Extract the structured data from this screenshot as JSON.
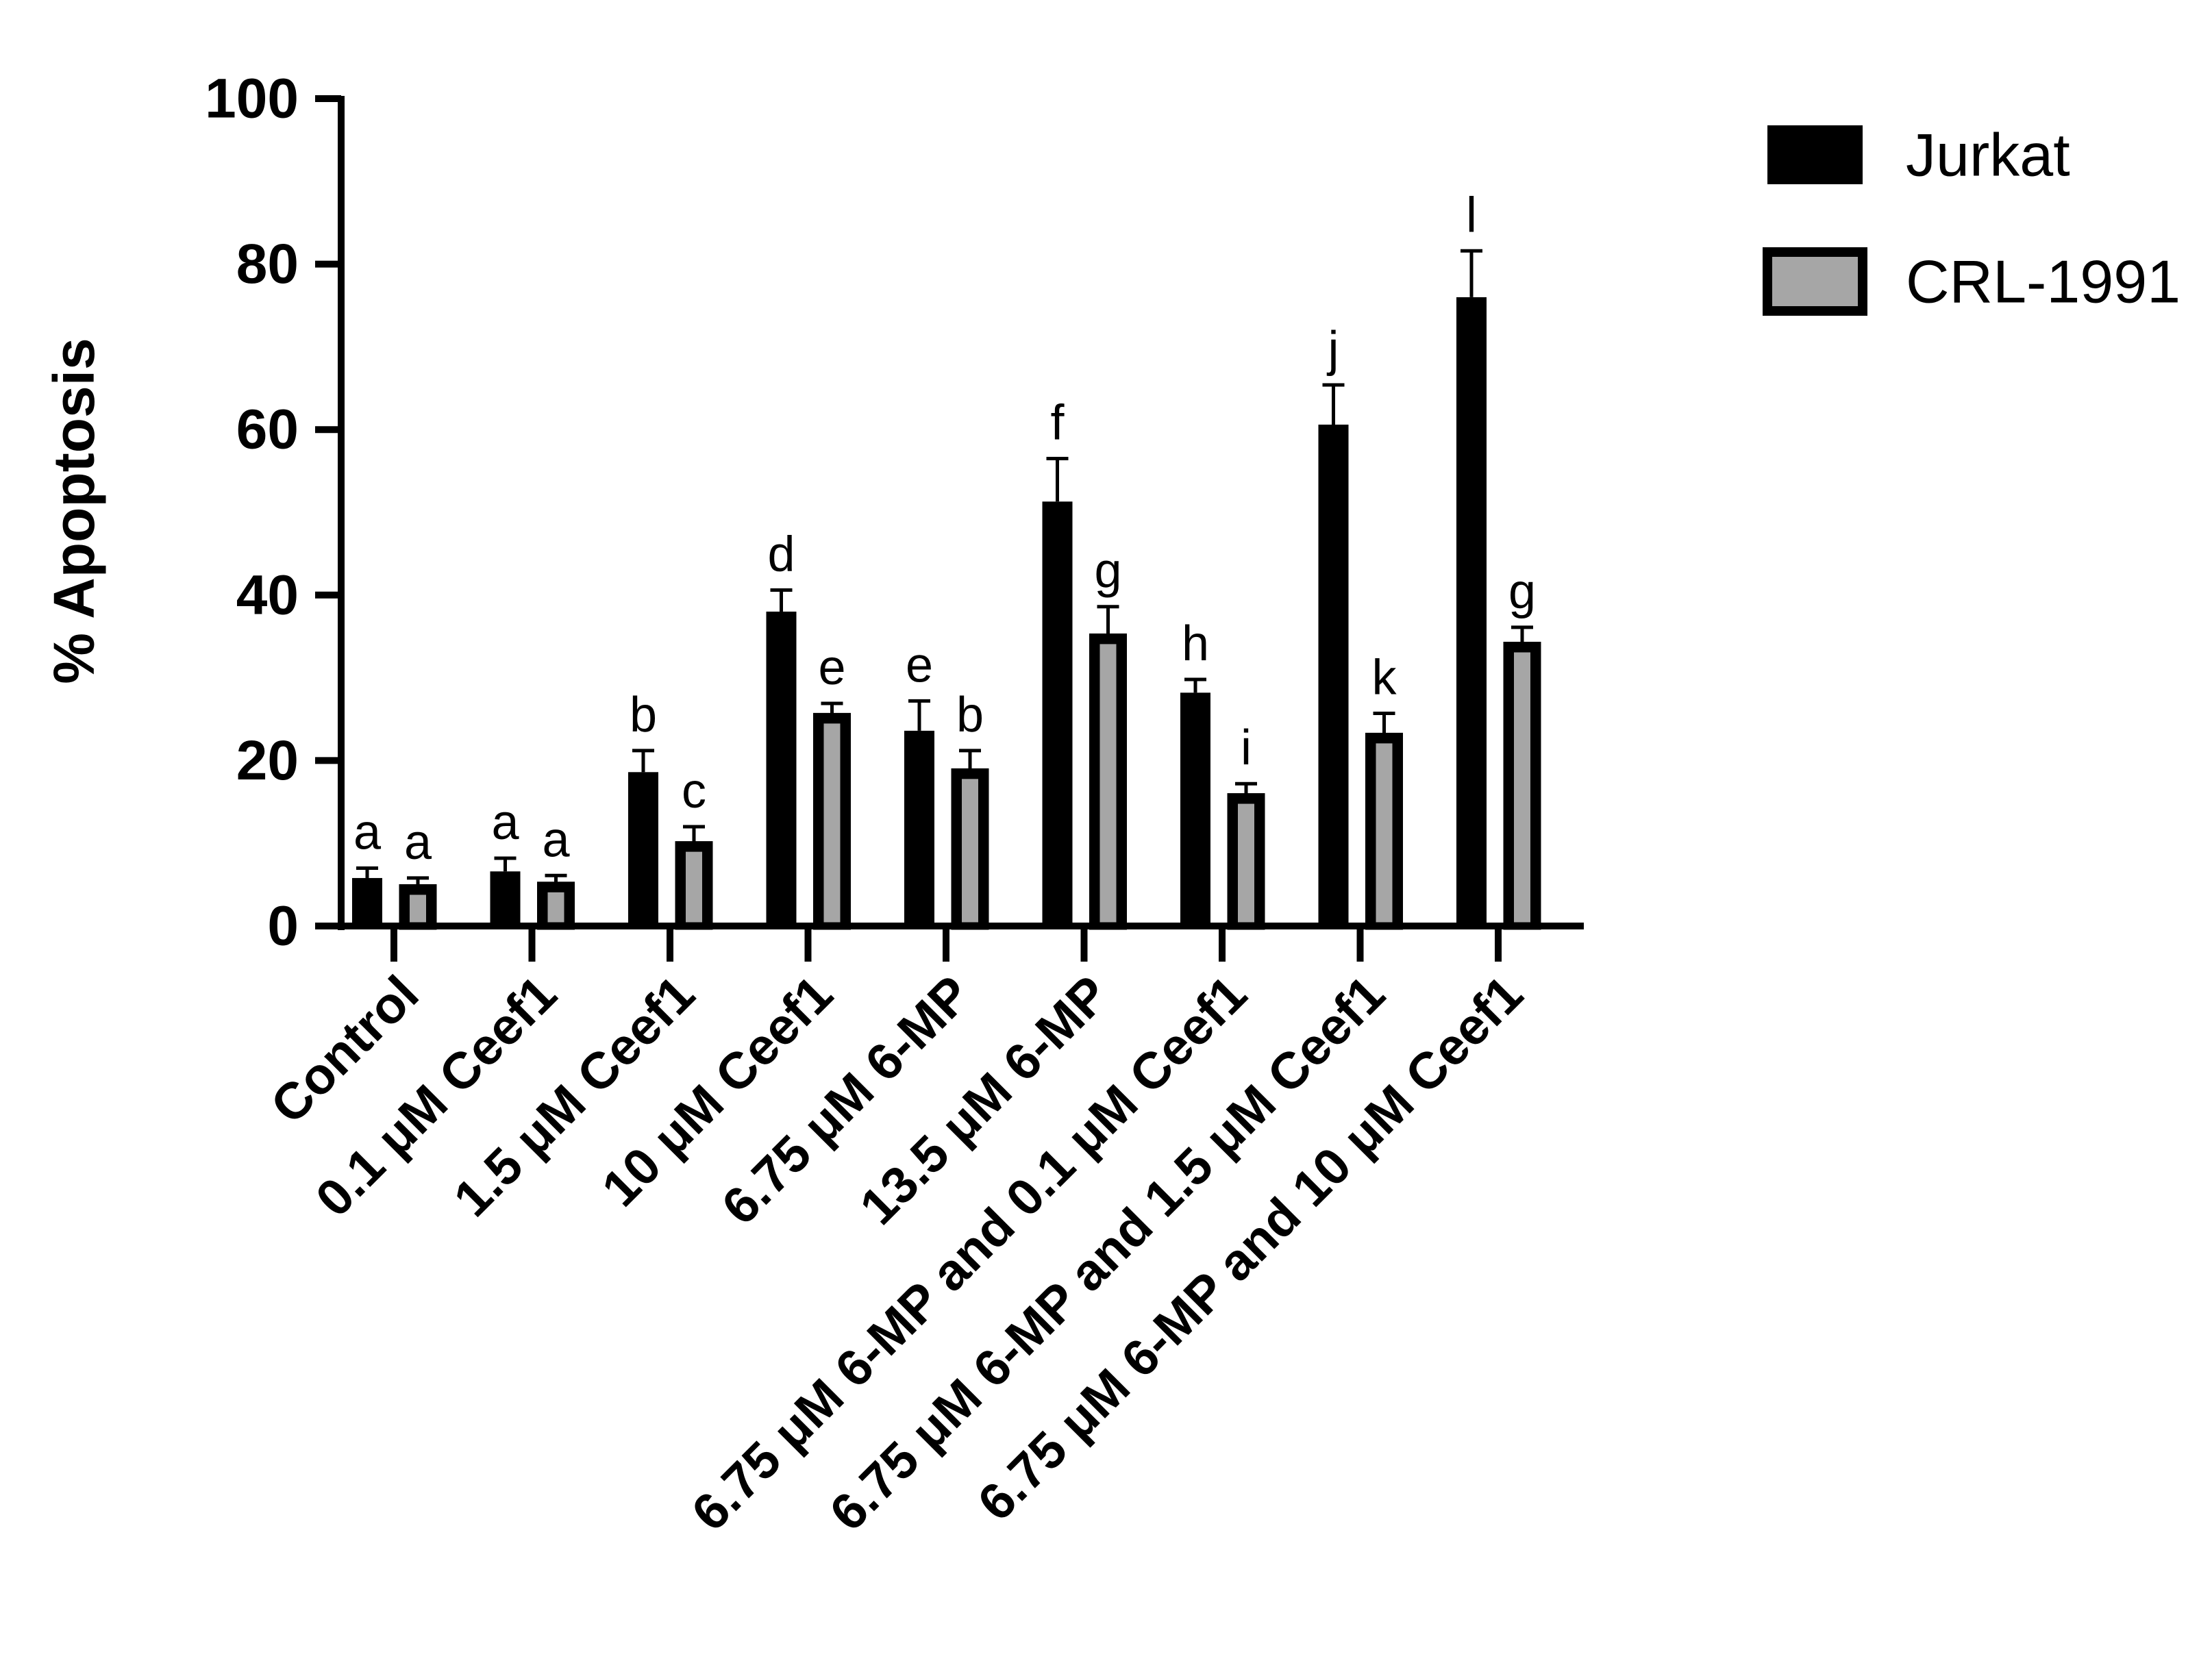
{
  "chart_data": {
    "type": "bar",
    "title": "",
    "xlabel": "",
    "ylabel": "% Apoptosis",
    "ylim": [
      0,
      100
    ],
    "yticks": [
      "0",
      "20",
      "40",
      "60",
      "80",
      "100"
    ],
    "categories": [
      "Control",
      "0.1 μM Ceef1",
      "1.5 μM Ceef1",
      "10 μM Ceef1",
      "6.75 μM 6-MP",
      "13.5 μM 6-MP",
      "6.75 μM 6-MP and 0.1 μM Ceef1",
      "6.75 μM 6-MP and 1.5 μM Ceef1",
      "6.75 μM 6-MP and 10 μM Ceef1"
    ],
    "series": [
      {
        "name": "Jurkat",
        "color": "#000000",
        "values": [
          5.8,
          6.6,
          18.6,
          38.0,
          23.6,
          51.3,
          28.2,
          60.6,
          76.0
        ],
        "errors": [
          1.2,
          1.6,
          2.6,
          2.6,
          3.6,
          5.2,
          1.6,
          4.8,
          5.6
        ],
        "letters": [
          "a",
          "a",
          "b",
          "d",
          "e",
          "f",
          "h",
          "j",
          "l"
        ]
      },
      {
        "name": "CRL-1991",
        "color": "#a6a6a6",
        "values": [
          4.6,
          4.9,
          9.8,
          25.3,
          18.6,
          34.9,
          15.6,
          22.9,
          33.9
        ],
        "errors": [
          1.2,
          1.2,
          2.2,
          1.6,
          2.6,
          3.7,
          1.6,
          2.8,
          2.2
        ],
        "letters": [
          "a",
          "a",
          "c",
          "e",
          "b",
          "g",
          "i",
          "k",
          "g"
        ]
      }
    ],
    "legend": {
      "position": "top-right",
      "entries": [
        "Jurkat",
        "CRL-1991"
      ]
    }
  }
}
